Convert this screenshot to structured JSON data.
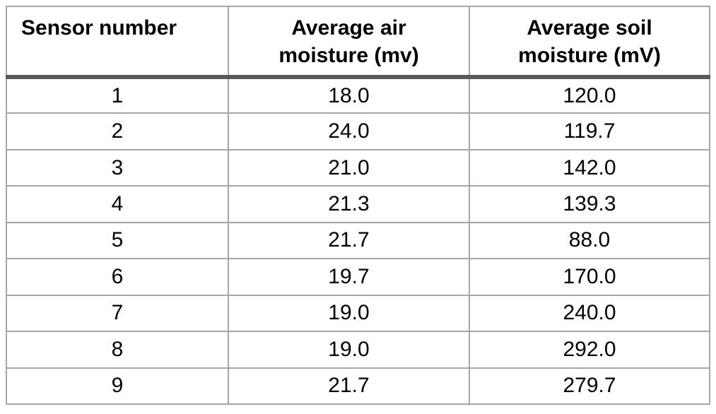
{
  "table": {
    "headers": [
      "Sensor number",
      "Average air\nmoisture (mv)",
      "Average soil\nmoisture (mV)"
    ],
    "rows": [
      [
        "1",
        "18.0",
        "120.0"
      ],
      [
        "2",
        "24.0",
        "119.7"
      ],
      [
        "3",
        "21.0",
        "142.0"
      ],
      [
        "4",
        "21.3",
        "139.3"
      ],
      [
        "5",
        "21.7",
        "88.0"
      ],
      [
        "6",
        "19.7",
        "170.0"
      ],
      [
        "7",
        "19.0",
        "240.0"
      ],
      [
        "8",
        "19.0",
        "292.0"
      ],
      [
        "9",
        "21.7",
        "279.7"
      ]
    ]
  },
  "chart_data": {
    "type": "table",
    "title": "",
    "columns": [
      "Sensor number",
      "Average air moisture (mv)",
      "Average soil moisture (mV)"
    ],
    "sensor_numbers": [
      1,
      2,
      3,
      4,
      5,
      6,
      7,
      8,
      9
    ],
    "average_air_moisture_mv": [
      18.0,
      24.0,
      21.0,
      21.3,
      21.7,
      19.7,
      19.0,
      19.0,
      21.7
    ],
    "average_soil_moisture_mV": [
      120.0,
      119.7,
      142.0,
      139.3,
      88.0,
      170.0,
      240.0,
      292.0,
      279.7
    ]
  },
  "colors": {
    "grid_border": "#a6a6a6",
    "header_rule": "#595959",
    "text": "#000000",
    "background": "#ffffff"
  }
}
